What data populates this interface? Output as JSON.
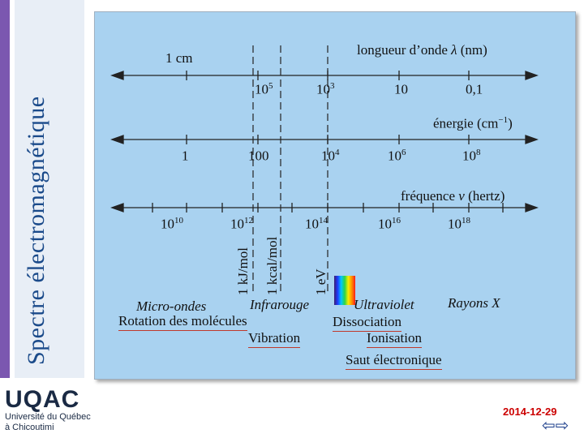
{
  "side_title": "Spectre électromagnétique",
  "wavelength": {
    "left_label": "1 cm",
    "title_prefix": "longueur d’onde",
    "title_symbol": "λ",
    "title_unit": "(nm)",
    "ticks": [
      {
        "base": "10",
        "exp": "5"
      },
      {
        "base": "10",
        "exp": "3"
      },
      {
        "base": "10",
        "exp": ""
      },
      {
        "base": "0,1",
        "exp": ""
      }
    ]
  },
  "energy": {
    "title_prefix": "énergie (cm",
    "title_exp": "−1",
    "title_suffix": ")",
    "ticks": [
      {
        "base": "1",
        "exp": ""
      },
      {
        "base": "100",
        "exp": ""
      },
      {
        "base": "10",
        "exp": "4"
      },
      {
        "base": "10",
        "exp": "6"
      },
      {
        "base": "10",
        "exp": "8"
      }
    ]
  },
  "frequency": {
    "title_prefix": "fréquence",
    "title_symbol": "ν",
    "title_unit": "(hertz)",
    "ticks": [
      {
        "base": "10",
        "exp": "10"
      },
      {
        "base": "10",
        "exp": "12"
      },
      {
        "base": "10",
        "exp": "14"
      },
      {
        "base": "10",
        "exp": "16"
      },
      {
        "base": "10",
        "exp": "18"
      }
    ]
  },
  "markers": [
    "1 kJ/mol",
    "1 kcal/mol",
    "1 eV"
  ],
  "regions": {
    "micro_ondes": "Micro-ondes",
    "infrarouge": "Infrarouge",
    "ultraviolet": "Ultraviolet",
    "rayons_x": "Rayons X"
  },
  "processes": {
    "rotation": "Rotation des molécules",
    "vibration": "Vibration",
    "dissociation": "Dissociation",
    "ionisation": "Ionisation",
    "saut": "Saut électronique"
  },
  "logo": {
    "name": "UQAC",
    "line1": "Université du Québec",
    "line2": "à Chicoutimi"
  },
  "footer": {
    "date": "2014-12-29"
  },
  "colors": {
    "side_title": "#1a4a8a",
    "panel": "#a9d2f0",
    "underline": "#c0392b",
    "date": "#cc0000"
  }
}
